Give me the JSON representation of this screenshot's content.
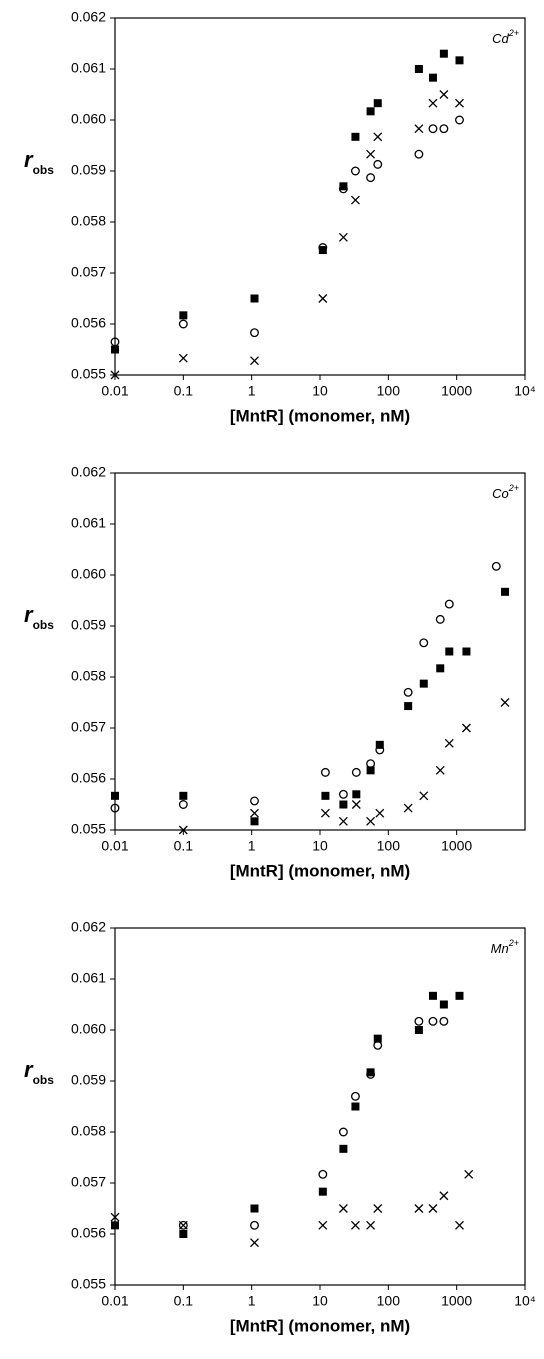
{
  "chart_data": [
    {
      "type": "scatter",
      "annotation": "Cd",
      "annotation_sup": "2+",
      "x_label": "[MntR] (monomer, nM)",
      "y_label": "r",
      "y_label_sub": "obs",
      "xscale": "log",
      "xlim": [
        0.01,
        10000
      ],
      "ylim": [
        0.055,
        0.062
      ],
      "xticks": [
        0.01,
        0.1,
        1,
        10,
        100,
        1000,
        {
          "value": 10000,
          "label": "10⁴"
        }
      ],
      "yticks": [
        0.055,
        0.056,
        0.057,
        0.058,
        0.059,
        {
          "value": 0.06,
          "label": "0.060"
        },
        0.061,
        0.062
      ],
      "series": [
        {
          "marker": "square",
          "color": "#000000",
          "x": [
            0.01,
            0.1,
            1.1,
            11,
            22,
            33,
            55,
            70,
            280,
            450,
            650,
            1100
          ],
          "values": [
            0.0555,
            0.05617,
            0.0565,
            0.05745,
            0.0587,
            0.05967,
            0.06017,
            0.06033,
            0.061,
            0.06083,
            0.0613,
            0.06117
          ]
        },
        {
          "marker": "circle",
          "color": "#000000",
          "x": [
            0.01,
            0.1,
            1.1,
            11,
            22,
            33,
            55,
            70,
            280,
            450,
            650,
            1100
          ],
          "values": [
            0.05565,
            0.056,
            0.05583,
            0.0575,
            0.05865,
            0.059,
            0.05887,
            0.05913,
            0.05933,
            0.05983,
            0.05983,
            0.06
          ]
        },
        {
          "marker": "cross",
          "color": "#000000",
          "x": [
            0.01,
            0.1,
            1.1,
            11,
            22,
            33,
            55,
            70,
            280,
            450,
            650,
            1100
          ],
          "values": [
            0.055,
            0.05533,
            0.05528,
            0.0565,
            0.0577,
            0.05843,
            0.05933,
            0.05967,
            0.05983,
            0.06033,
            0.0605,
            0.06033
          ]
        }
      ]
    },
    {
      "type": "scatter",
      "annotation": "Co",
      "annotation_sup": "2+",
      "x_label": "[MntR] (monomer, nM)",
      "y_label": "r",
      "y_label_sub": "obs",
      "xscale": "log",
      "xlim": [
        0.01,
        10000
      ],
      "ylim": [
        0.055,
        0.062
      ],
      "xticks": [
        0.01,
        0.1,
        1,
        10,
        100,
        1000
      ],
      "yticks": [
        0.055,
        0.056,
        0.057,
        0.058,
        0.059,
        {
          "value": 0.06,
          "label": "0.060"
        },
        0.061,
        0.062
      ],
      "series": [
        {
          "marker": "square",
          "color": "#000000",
          "x": [
            0.01,
            0.1,
            1.1,
            12,
            22,
            34,
            55,
            75,
            195,
            330,
            575,
            780,
            1390,
            5100
          ],
          "values": [
            0.05567,
            0.05567,
            0.05517,
            0.05567,
            0.0555,
            0.0557,
            0.05617,
            0.05667,
            0.05743,
            0.05787,
            0.05817,
            0.0585,
            0.0585,
            0.05967
          ]
        },
        {
          "marker": "circle",
          "color": "#000000",
          "x": [
            0.01,
            0.1,
            1.1,
            12,
            22,
            34,
            55,
            75,
            195,
            330,
            575,
            780,
            3800
          ],
          "values": [
            0.05543,
            0.0555,
            0.05557,
            0.05613,
            0.0557,
            0.05613,
            0.0563,
            0.05657,
            0.0577,
            0.05867,
            0.05913,
            0.05943,
            0.06017
          ]
        },
        {
          "marker": "cross",
          "color": "#000000",
          "x": [
            0.1,
            1.1,
            12,
            22,
            34,
            55,
            75,
            195,
            330,
            575,
            780,
            1390,
            5100
          ],
          "values": [
            0.055,
            0.05533,
            0.05533,
            0.05517,
            0.0555,
            0.05517,
            0.05533,
            0.05543,
            0.05567,
            0.05617,
            0.0567,
            0.057,
            0.0575
          ]
        }
      ]
    },
    {
      "type": "scatter",
      "annotation": "Mn",
      "annotation_sup": "2+",
      "x_label": "[MntR] (monomer, nM)",
      "y_label": "r",
      "y_label_sub": "obs",
      "xscale": "log",
      "xlim": [
        0.01,
        10000
      ],
      "ylim": [
        0.055,
        0.062
      ],
      "xticks": [
        0.01,
        0.1,
        1,
        10,
        100,
        1000,
        {
          "value": 10000,
          "label": "10⁴"
        }
      ],
      "yticks": [
        0.055,
        0.056,
        0.057,
        0.058,
        0.059,
        {
          "value": 0.06,
          "label": "0.060"
        },
        0.061,
        0.062
      ],
      "series": [
        {
          "marker": "square",
          "color": "#000000",
          "x": [
            0.01,
            0.1,
            1.1,
            11,
            22,
            33,
            55,
            70,
            280,
            450,
            650,
            1100
          ],
          "values": [
            0.05617,
            0.056,
            0.0565,
            0.05683,
            0.05767,
            0.0585,
            0.05917,
            0.05983,
            0.06,
            0.06067,
            0.0605,
            0.06067
          ]
        },
        {
          "marker": "circle",
          "color": "#000000",
          "x": [
            0.1,
            1.1,
            11,
            22,
            33,
            55,
            70,
            280,
            450,
            650
          ],
          "values": [
            0.05617,
            0.05617,
            0.05717,
            0.058,
            0.0587,
            0.05913,
            0.0597,
            0.06017,
            0.06017,
            0.06017
          ]
        },
        {
          "marker": "cross",
          "color": "#000000",
          "x": [
            0.01,
            0.1,
            1.1,
            11,
            22,
            33,
            55,
            70,
            280,
            450,
            650,
            1100,
            1500
          ],
          "values": [
            0.05633,
            0.05617,
            0.05583,
            0.05617,
            0.0565,
            0.05617,
            0.05617,
            0.0565,
            0.0565,
            0.0565,
            0.05675,
            0.05617,
            0.05717
          ]
        }
      ]
    }
  ]
}
